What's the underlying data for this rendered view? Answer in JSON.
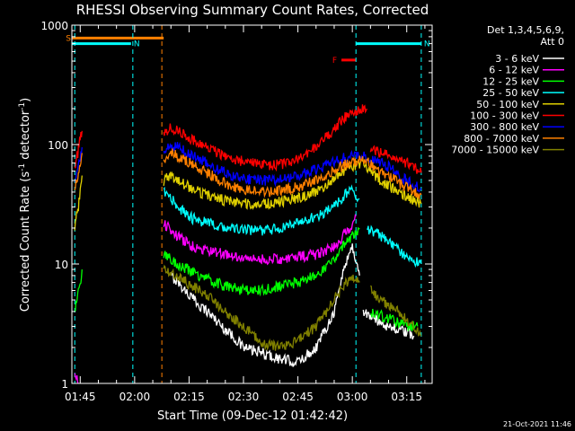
{
  "chart_data": {
    "type": "line",
    "title": "RHESSI Observing Summary Count Rates, Corrected",
    "xlabel": "Start Time (09-Dec-12 01:42:42)",
    "ylabel": "Corrected Count Rate (s",
    "ylabel_sup1": "-1",
    "ylabel_mid": " detector",
    "ylabel_sup2": "-1",
    "ylabel_end": ")",
    "y_scale": "log",
    "ylim": [
      1,
      1000
    ],
    "y_ticks": [
      "1",
      "10",
      "100",
      "1000"
    ],
    "xlim": [
      "01:42:42",
      "03:22:00"
    ],
    "x_ticks": [
      {
        "t": "01:45",
        "label": "01:45"
      },
      {
        "t": "02:00",
        "label": "02:00"
      },
      {
        "t": "02:15",
        "label": "02:15"
      },
      {
        "t": "02:30",
        "label": "02:30"
      },
      {
        "t": "02:45",
        "label": "02:45"
      },
      {
        "t": "03:00",
        "label": "03:00"
      },
      {
        "t": "03:15",
        "label": "03:15"
      }
    ],
    "legend_header": [
      "Det 1,3,4,5,6,9,",
      "Att 0"
    ],
    "legend_position": "top-right, outside plot",
    "footer_date": "21-Oct-2021 11:46",
    "flags": [
      {
        "label": "S",
        "color": "#ff8000",
        "start": "01:42:42",
        "end": "02:08:00",
        "level": 780
      },
      {
        "label": "N",
        "color": "#00ffff",
        "start": "01:42:42",
        "end": "01:59:00",
        "level": 700
      },
      {
        "label": "N",
        "color": "#00ffff",
        "start": "03:01:00",
        "end": "03:19:00",
        "level": 700
      },
      {
        "label": "F",
        "color": "#ff0000",
        "start": "02:57:00",
        "end": "03:01:00",
        "level": 510
      }
    ],
    "night_lines": [
      {
        "t": "01:43:30",
        "color": "#00ffff"
      },
      {
        "t": "01:59:30",
        "color": "#00ffff"
      },
      {
        "t": "02:07:30",
        "color": "#ff8000"
      },
      {
        "t": "03:01:00",
        "color": "#00ffff"
      },
      {
        "t": "03:19:00",
        "color": "#00ffff"
      }
    ],
    "series": [
      {
        "name": "3 - 6 keV",
        "color": "#ffffff",
        "segments": [
          {
            "t": [
              "02:10",
              "02:12",
              "02:15",
              "02:18",
              "02:21",
              "02:24",
              "02:27",
              "02:30",
              "02:35",
              "02:40",
              "02:45",
              "02:50",
              "02:55",
              "02:58",
              "03:00",
              "03:02"
            ],
            "v": [
              8,
              7,
              5.5,
              4.5,
              3.8,
              3,
              2.5,
              2,
              1.8,
              1.6,
              1.5,
              2,
              4,
              10,
              14,
              8
            ]
          },
          {
            "t": [
              "03:03",
              "03:06",
              "03:10",
              "03:13",
              "03:17"
            ],
            "v": [
              4,
              3.5,
              3,
              2.8,
              2.5
            ]
          }
        ]
      },
      {
        "name": "6 - 12 keV",
        "color": "#ff00ff",
        "segments": [
          {
            "t": [
              "01:43:30",
              "01:44:30"
            ],
            "v": [
              1.2,
              1.0
            ]
          },
          {
            "t": [
              "02:08",
              "02:10",
              "02:13",
              "02:16",
              "02:20",
              "02:25",
              "02:30",
              "02:35",
              "02:40",
              "02:45",
              "02:50",
              "02:55",
              "02:58",
              "03:00",
              "03:01"
            ],
            "v": [
              22,
              19,
              16,
              14,
              13,
              12,
              11,
              11,
              11,
              11.5,
              12,
              14,
              18,
              22,
              25
            ]
          }
        ]
      },
      {
        "name": "12 - 25 keV",
        "color": "#00ff00",
        "segments": [
          {
            "t": [
              "01:43:30",
              "01:44:00",
              "01:44:30",
              "01:45:00",
              "01:45:30"
            ],
            "v": [
              4,
              5,
              6,
              7,
              9
            ]
          },
          {
            "t": [
              "02:08",
              "02:10",
              "02:13",
              "02:16",
              "02:20",
              "02:25",
              "02:30",
              "02:35",
              "02:40",
              "02:45",
              "02:50",
              "02:55",
              "02:58",
              "03:00",
              "03:02"
            ],
            "v": [
              12,
              11,
              9.5,
              8.5,
              7.5,
              6.5,
              6,
              6,
              6.5,
              7,
              8,
              11,
              15,
              17,
              20
            ]
          },
          {
            "t": [
              "03:05",
              "03:10",
              "03:15",
              "03:18"
            ],
            "v": [
              4,
              3.5,
              3,
              3
            ]
          }
        ]
      },
      {
        "name": "25 - 50 keV",
        "color": "#00ffff",
        "segments": [
          {
            "t": [
              "02:08",
              "02:10",
              "02:13",
              "02:16",
              "02:20",
              "02:25",
              "02:30",
              "02:35",
              "02:40",
              "02:45",
              "02:50",
              "02:55",
              "02:58",
              "03:00",
              "03:02"
            ],
            "v": [
              40,
              35,
              28,
              24,
              22,
              20,
              19.5,
              19,
              20,
              22,
              25,
              30,
              38,
              42,
              35
            ]
          },
          {
            "t": [
              "03:04",
              "03:07",
              "03:10",
              "03:13",
              "03:16",
              "03:19"
            ],
            "v": [
              20,
              18,
              15,
              13,
              11,
              10
            ]
          }
        ]
      },
      {
        "name": "50 - 100 keV",
        "color": "#e0d000",
        "segments": [
          {
            "t": [
              "01:43:30",
              "01:44:00",
              "01:44:30",
              "01:45:00",
              "01:45:30"
            ],
            "v": [
              20,
              25,
              30,
              40,
              55
            ]
          },
          {
            "t": [
              "02:08",
              "02:10",
              "02:13",
              "02:16",
              "02:20",
              "02:25",
              "02:30",
              "02:35",
              "02:40",
              "02:45",
              "02:50",
              "02:55",
              "02:58",
              "03:00",
              "03:03",
              "03:06",
              "03:10",
              "03:14",
              "03:19"
            ],
            "v": [
              50,
              55,
              48,
              42,
              38,
              34,
              32,
              32,
              33,
              36,
              40,
              52,
              62,
              65,
              70,
              55,
              45,
              38,
              32
            ]
          }
        ]
      },
      {
        "name": "100 - 300 keV",
        "color": "#ff0000",
        "segments": [
          {
            "t": [
              "01:43:30",
              "01:44:00",
              "01:44:30",
              "01:45:00",
              "01:45:30"
            ],
            "v": [
              60,
              75,
              90,
              110,
              130
            ]
          },
          {
            "t": [
              "02:08",
              "02:10",
              "02:13",
              "02:16",
              "02:20",
              "02:25",
              "02:30",
              "02:35",
              "02:40",
              "02:45",
              "02:50",
              "02:55",
              "02:58",
              "03:00",
              "03:02",
              "03:04"
            ],
            "v": [
              120,
              140,
              125,
              110,
              95,
              80,
              72,
              67,
              68,
              75,
              95,
              135,
              170,
              185,
              195,
              200
            ]
          },
          {
            "t": [
              "03:05",
              "03:08",
              "03:12",
              "03:16",
              "03:19"
            ],
            "v": [
              90,
              85,
              78,
              68,
              58
            ]
          }
        ]
      },
      {
        "name": "300 - 800 keV",
        "color": "#0000ff",
        "segments": [
          {
            "t": [
              "01:43:30",
              "01:44:00",
              "01:44:30",
              "01:45:00",
              "01:45:30"
            ],
            "v": [
              50,
              60,
              70,
              80,
              95
            ]
          },
          {
            "t": [
              "02:08",
              "02:10",
              "02:13",
              "02:16",
              "02:20",
              "02:25",
              "02:30",
              "02:35",
              "02:40",
              "02:45",
              "02:50",
              "02:55",
              "02:58",
              "03:00",
              "03:03",
              "03:06",
              "03:10",
              "03:14",
              "03:19"
            ],
            "v": [
              90,
              100,
              92,
              80,
              70,
              58,
              52,
              50,
              51,
              55,
              62,
              72,
              78,
              80,
              80,
              75,
              65,
              52,
              42
            ]
          }
        ]
      },
      {
        "name": "800 - 7000 keV",
        "color": "#ff8000",
        "segments": [
          {
            "t": [
              "01:43:30",
              "01:44:00",
              "01:44:30",
              "01:45:00",
              "01:45:30"
            ],
            "v": [
              40,
              50,
              60,
              70,
              85
            ]
          },
          {
            "t": [
              "02:08",
              "02:10",
              "02:13",
              "02:16",
              "02:20",
              "02:25",
              "02:30",
              "02:35",
              "02:40",
              "02:45",
              "02:50",
              "02:55",
              "02:58",
              "03:00",
              "03:03",
              "03:06",
              "03:10",
              "03:14",
              "03:19"
            ],
            "v": [
              75,
              85,
              78,
              68,
              58,
              47,
              42,
              40,
              41,
              44,
              50,
              60,
              68,
              72,
              75,
              65,
              55,
              45,
              38
            ]
          }
        ]
      },
      {
        "name": "7000 - 15000 keV",
        "color": "#808000",
        "segments": [
          {
            "t": [
              "02:08",
              "02:10",
              "02:13",
              "02:16",
              "02:20",
              "02:25",
              "02:30",
              "02:35",
              "02:40",
              "02:45",
              "02:50",
              "02:55",
              "02:58",
              "03:00",
              "03:02"
            ],
            "v": [
              9,
              8.5,
              7.5,
              6.5,
              5.5,
              4,
              3,
              2.2,
              2,
              2.3,
              3,
              5,
              7,
              7.5,
              7
            ]
          },
          {
            "t": [
              "03:05",
              "03:10",
              "03:15",
              "03:19"
            ],
            "v": [
              6,
              4.5,
              3.5,
              2.5
            ]
          }
        ]
      }
    ]
  }
}
